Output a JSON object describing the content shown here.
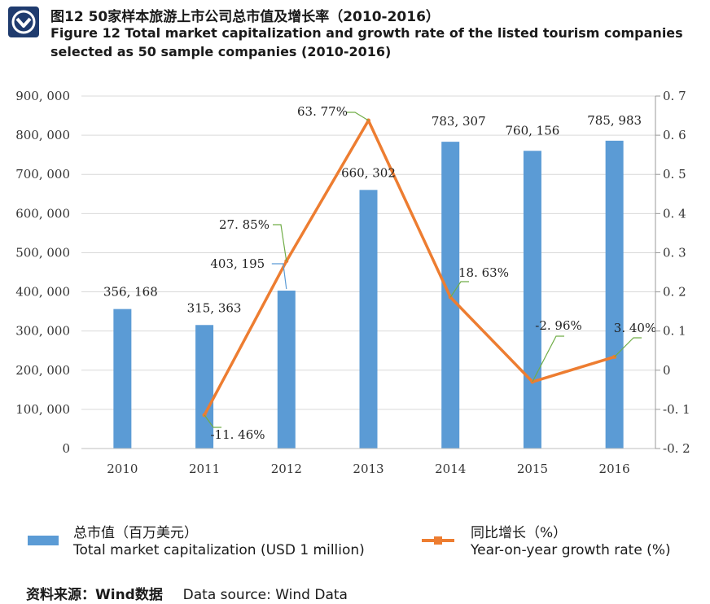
{
  "header": {
    "title_cn": "图12 50家样本旅游上市公司总市值及增长率（2010-2016）",
    "title_en": "Figure 12 Total market capitalization and growth rate of the listed tourism companies selected as 50 sample companies (2010-2016)"
  },
  "colors": {
    "bar": "#5b9bd5",
    "line": "#ed7d31",
    "grid": "#d9d9d9",
    "leader": "#70ad47",
    "leader_blue": "#5b9bd5",
    "logo": "#1f3b6e"
  },
  "chart_data": {
    "type": "bar+line",
    "categories": [
      "2010",
      "2011",
      "2012",
      "2013",
      "2014",
      "2015",
      "2016"
    ],
    "series": [
      {
        "name": "总市值（百万美元） Total market capitalization (USD 1 million)",
        "type": "bar",
        "axis": "left",
        "values": [
          356168,
          315363,
          403195,
          660302,
          783307,
          760156,
          785983
        ],
        "labels": [
          "356, 168",
          "315, 363",
          "403, 195",
          "660, 302",
          "783, 307",
          "760, 156",
          "785, 983"
        ]
      },
      {
        "name": "同比增长（%） Year-on-year growth rate (%)",
        "type": "line",
        "axis": "right",
        "values": [
          null,
          -0.1146,
          0.2785,
          0.6377,
          0.1863,
          -0.0296,
          0.034
        ],
        "labels": [
          null,
          "-11. 46%",
          "27. 85%",
          "63. 77%",
          "18. 63%",
          "-2. 96%",
          "3. 40%"
        ]
      }
    ],
    "y_left": {
      "range": [
        0,
        900000
      ],
      "ticks": [
        0,
        100000,
        200000,
        300000,
        400000,
        500000,
        600000,
        700000,
        800000,
        900000
      ],
      "tick_labels": [
        "0",
        "100, 000",
        "200, 000",
        "300, 000",
        "400, 000",
        "500, 000",
        "600, 000",
        "700, 000",
        "800, 000",
        "900, 000"
      ]
    },
    "y_right": {
      "range": [
        -0.2,
        0.7
      ],
      "ticks": [
        -0.2,
        -0.1,
        0,
        0.1,
        0.2,
        0.3,
        0.4,
        0.5,
        0.6,
        0.7
      ],
      "tick_labels": [
        "-0. 2",
        "-0. 1",
        "0",
        "0. 1",
        "0. 2",
        "0. 3",
        "0. 4",
        "0. 5",
        "0. 6",
        "0. 7"
      ]
    },
    "grid": true,
    "legend_position": "bottom"
  },
  "legend": {
    "bar_cn": "总市值（百万美元）",
    "bar_en": "Total market capitalization (USD 1 million)",
    "line_cn": "同比增长（%）",
    "line_en": "Year-on-year growth rate (%)"
  },
  "source": {
    "cn": "资料来源：Wind数据",
    "en": "Data source: Wind Data"
  }
}
